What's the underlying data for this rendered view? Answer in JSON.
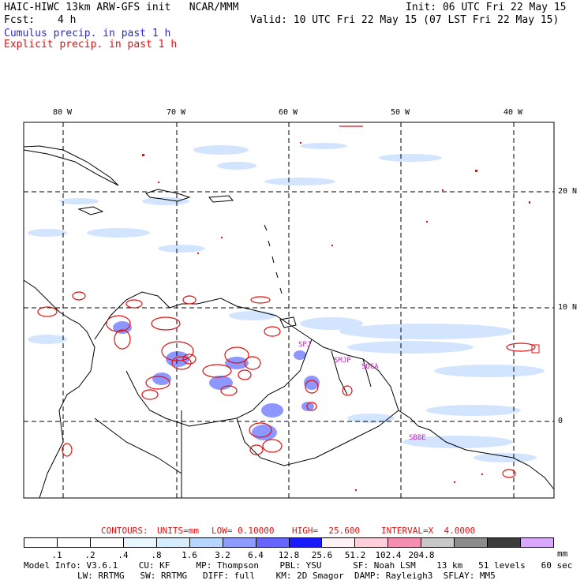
{
  "header": {
    "model_line": "HAIC-HIWC 13km ARW-GFS init   NCAR/MMM",
    "init_line": "Init: 06 UTC Fri 22 May 15",
    "fcst_label": "Fcst:",
    "fcst_value": "4 h",
    "valid_line": "Valid: 10 UTC Fri 22 May 15 (07 LST Fri 22 May 15)",
    "legend_cumulus": "Cumulus precip. in past 1 h",
    "legend_explicit": "Explicit precip. in past 1 h"
  },
  "map": {
    "lon_labels": [
      "80 W",
      "70 W",
      "60 W",
      "50 W",
      "40 W"
    ],
    "lat_labels": [
      "20 N",
      "10 N",
      "0"
    ],
    "stations": [
      "SPJ",
      "SMJP",
      "SOCA",
      "SBBE"
    ]
  },
  "contours_line": {
    "contours": "CONTOURS:",
    "units": "UNITS=mm",
    "low": "LOW= 0.10000",
    "high": "HIGH=  25.600",
    "interval": "INTERVAL=X  4.0000"
  },
  "colorbar": {
    "colors": [
      "#ffffff",
      "#ffffff",
      "#ffffff",
      "#e8f6ff",
      "#d6ecff",
      "#b6d6ff",
      "#8f9cff",
      "#6666ff",
      "#1a1aff",
      "#fff2f5",
      "#ffd0dc",
      "#f58fb2",
      "#c8c8c8",
      "#8c8c8c",
      "#3c3c3c",
      "#d8a8ff"
    ],
    "ticks": [
      ".1",
      ".2",
      ".4",
      ".8",
      "1.6",
      "3.2",
      "6.4",
      "12.8",
      "25.6",
      "51.2",
      "102.4",
      "204.8"
    ],
    "unit": "mm"
  },
  "footer": {
    "line1": "Model Info: V3.6.1    CU: KF     MP: Thompson    PBL: YSU      SF: Noah LSM    13 km   51 levels   60 sec",
    "line2": "LW: RRTMG   SW: RRTMG   DIFF: full    KM: 2D Smagor  DAMP: Rayleigh3  SFLAY: MM5"
  },
  "colors": {
    "cumulus": "#2a2acc",
    "explicit": "#e01010",
    "station_label": "#c020c0"
  }
}
